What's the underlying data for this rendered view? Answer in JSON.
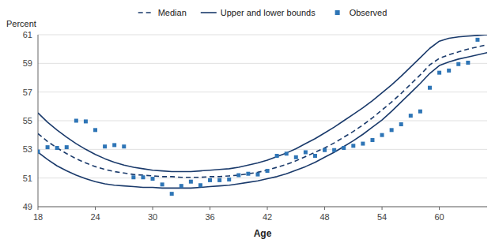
{
  "chart_data": {
    "type": "line",
    "xlabel": "Age",
    "ylabel": "Percent",
    "x": [
      18,
      19,
      20,
      21,
      22,
      23,
      24,
      25,
      26,
      27,
      28,
      29,
      30,
      31,
      32,
      33,
      34,
      35,
      36,
      37,
      38,
      39,
      40,
      41,
      42,
      43,
      44,
      45,
      46,
      47,
      48,
      49,
      50,
      51,
      52,
      53,
      54,
      55,
      56,
      57,
      58,
      59,
      60,
      61,
      62,
      63,
      64,
      65
    ],
    "series": [
      {
        "name": "Median",
        "type": "line",
        "line_style": "dashed",
        "color": "#1a3a6b",
        "values": [
          54.1,
          53.55,
          53.1,
          52.7,
          52.35,
          52.05,
          51.8,
          51.6,
          51.45,
          51.35,
          51.25,
          51.2,
          51.15,
          51.1,
          51.1,
          51.05,
          51.05,
          51.05,
          51.1,
          51.1,
          51.15,
          51.2,
          51.3,
          51.4,
          51.55,
          51.75,
          51.95,
          52.2,
          52.5,
          52.8,
          53.1,
          53.45,
          53.85,
          54.25,
          54.7,
          55.2,
          55.75,
          56.3,
          56.9,
          57.55,
          58.2,
          58.9,
          59.35,
          59.6,
          59.8,
          60.0,
          60.15,
          60.3
        ]
      },
      {
        "name": "Upper and lower bounds",
        "type": "line",
        "line_style": "solid",
        "color": "#1a3a6b",
        "values": [
          55.55,
          54.9,
          54.35,
          53.85,
          53.4,
          53.0,
          52.65,
          52.35,
          52.1,
          51.9,
          51.75,
          51.65,
          51.55,
          51.5,
          51.45,
          51.45,
          51.45,
          51.5,
          51.55,
          51.6,
          51.65,
          51.75,
          51.9,
          52.05,
          52.25,
          52.5,
          52.75,
          53.05,
          53.4,
          53.75,
          54.15,
          54.55,
          55.0,
          55.45,
          55.9,
          56.4,
          56.95,
          57.5,
          58.1,
          58.75,
          59.4,
          60.05,
          60.55,
          60.75,
          60.85,
          60.9,
          60.95,
          61.0
        ]
      },
      {
        "name": "Upper and lower bounds",
        "type": "line",
        "line_style": "solid",
        "color": "#1a3a6b",
        "values": [
          52.8,
          52.3,
          51.85,
          51.5,
          51.2,
          50.95,
          50.75,
          50.6,
          50.5,
          50.45,
          50.4,
          50.35,
          50.35,
          50.3,
          50.3,
          50.3,
          50.3,
          50.35,
          50.4,
          50.45,
          50.5,
          50.6,
          50.7,
          50.8,
          50.95,
          51.1,
          51.3,
          51.55,
          51.8,
          52.1,
          52.45,
          52.8,
          53.2,
          53.6,
          54.05,
          54.55,
          55.05,
          55.65,
          56.3,
          56.95,
          57.6,
          58.3,
          58.85,
          59.1,
          59.3,
          59.45,
          59.6,
          59.75
        ]
      },
      {
        "name": "Observed",
        "type": "scatter",
        "marker": "square",
        "color": "#2e75b6",
        "x": [
          18.0,
          19.0,
          20.0,
          21.0,
          22.0,
          23.0,
          24.0,
          25.0,
          26.0,
          27.0,
          28.0,
          29.0,
          30.0,
          31.0,
          32.0,
          33.0,
          34.0,
          35.0,
          36.0,
          37.0,
          38.0,
          39.0,
          40.0,
          41.0,
          42.0,
          43.0,
          44.0,
          45.0,
          46.0,
          47.0,
          48.0,
          49.0,
          50.0,
          51.0,
          52.0,
          53.0,
          54.0,
          55.0,
          56.0,
          57.0,
          58.0,
          59.0,
          60.0,
          61.0,
          62.0,
          63.0,
          64.0
        ],
        "values": [
          52.85,
          53.15,
          53.1,
          53.15,
          55.0,
          54.95,
          54.35,
          53.2,
          53.3,
          53.2,
          51.05,
          51.05,
          50.95,
          50.55,
          49.9,
          50.45,
          50.75,
          50.5,
          50.85,
          50.85,
          50.9,
          51.2,
          51.3,
          51.25,
          51.5,
          52.55,
          52.7,
          52.45,
          52.8,
          52.55,
          52.95,
          52.95,
          53.1,
          53.25,
          53.4,
          53.65,
          54.0,
          54.35,
          54.75,
          55.35,
          55.65,
          57.3,
          58.35,
          58.5,
          58.95,
          59.05,
          60.65
        ]
      }
    ],
    "xlim": [
      18,
      65
    ],
    "ylim": [
      49,
      61
    ],
    "xticks": [
      18,
      24,
      30,
      36,
      42,
      48,
      54,
      60
    ],
    "yticks": [
      49,
      51,
      53,
      55,
      57,
      59,
      61
    ],
    "grid": "y",
    "legend": "top"
  }
}
